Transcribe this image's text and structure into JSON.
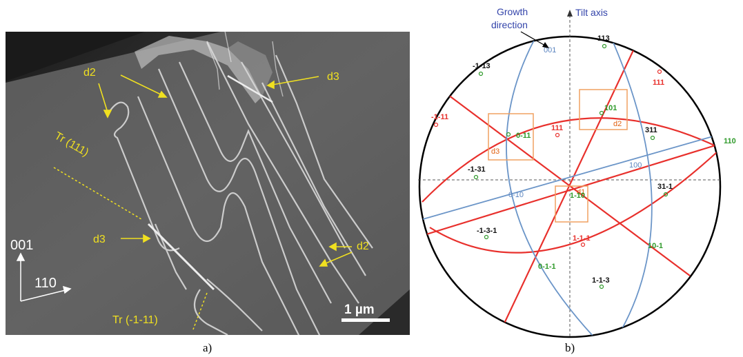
{
  "panel_a": {
    "caption": "a)",
    "labels": {
      "d2_top": "d2",
      "d3_top": "d3",
      "tr111": "Tr (111)",
      "d3_mid": "d3",
      "d2_right": "d2",
      "tr_m111": "Tr (-1-11)"
    },
    "axes": {
      "vertical": "001",
      "horizontal": "110"
    },
    "scale_bar": "1 µm",
    "colors": {
      "annotation": "#f0e020",
      "background": "#ffffff"
    }
  },
  "panel_b": {
    "caption": "b)",
    "header": {
      "growth_line1": "Growth",
      "growth_line2": "direction",
      "tilt_axis": "Tilt axis"
    },
    "blue_labels": {
      "p001": "001",
      "p100": "100",
      "p0m10": "0-10"
    },
    "boxes": {
      "d1": "d1",
      "d2": "d2",
      "d3": "d3"
    },
    "poles": {
      "black": [
        "113",
        "-1-13",
        "311",
        "-1-31",
        "31-1",
        "-1-3-1",
        "1-1-3"
      ],
      "red": [
        "111",
        "-1-11",
        "111",
        "1-1-1"
      ],
      "green": [
        "101",
        "0-11",
        "110",
        "1-10",
        "10-1",
        "0-1-1"
      ]
    },
    "colors": {
      "red_trace": "#e8302c",
      "blue_trace": "#6b95c8",
      "green": "#2f9a2a",
      "orange_box": "#f0a060",
      "header_blue": "#3344aa"
    }
  }
}
